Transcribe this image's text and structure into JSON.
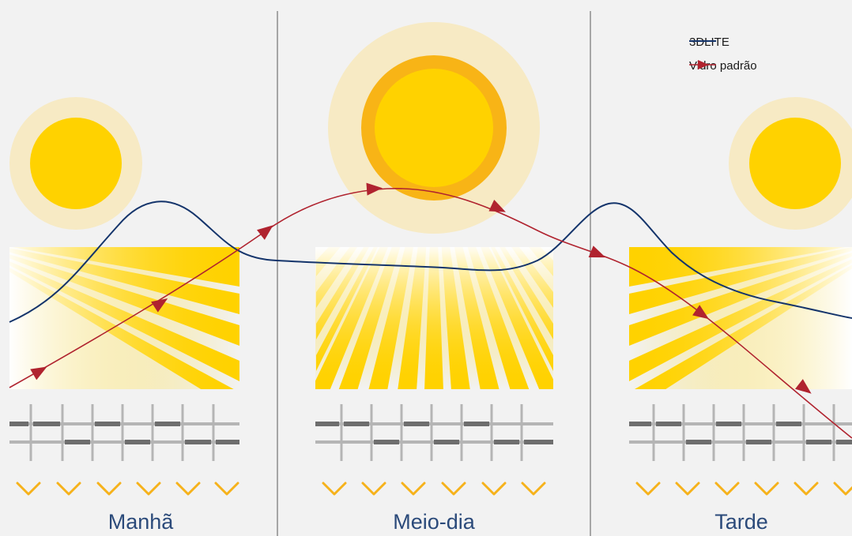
{
  "colors": {
    "background": "#f2f2f2",
    "divider": "#a6a6a6",
    "halo": "#f7eac4",
    "sun": "#ffd200",
    "sun_ring": "#f8b416",
    "ray": "#ffd200",
    "fabric_light": "#b5b5b5",
    "fabric_dark": "#6e6e6e",
    "chevron": "#f6b21b",
    "series_3dlite": "#14346b",
    "series_glass": "#b0232f",
    "label": "#2b4a7a"
  },
  "legend": {
    "series_3dlite": "3DLITE",
    "series_glass": "Vidro padrão"
  },
  "panels": [
    {
      "key": "morning",
      "label": "Manhã"
    },
    {
      "key": "noon",
      "label": "Meio-dia"
    },
    {
      "key": "afternoon",
      "label": "Tarde"
    }
  ],
  "icons": {
    "legend_line": "line-swatch-icon",
    "legend_arrow": "arrow-line-swatch-icon",
    "chevron": "chevron-down-icon",
    "sun": "sun-icon"
  }
}
